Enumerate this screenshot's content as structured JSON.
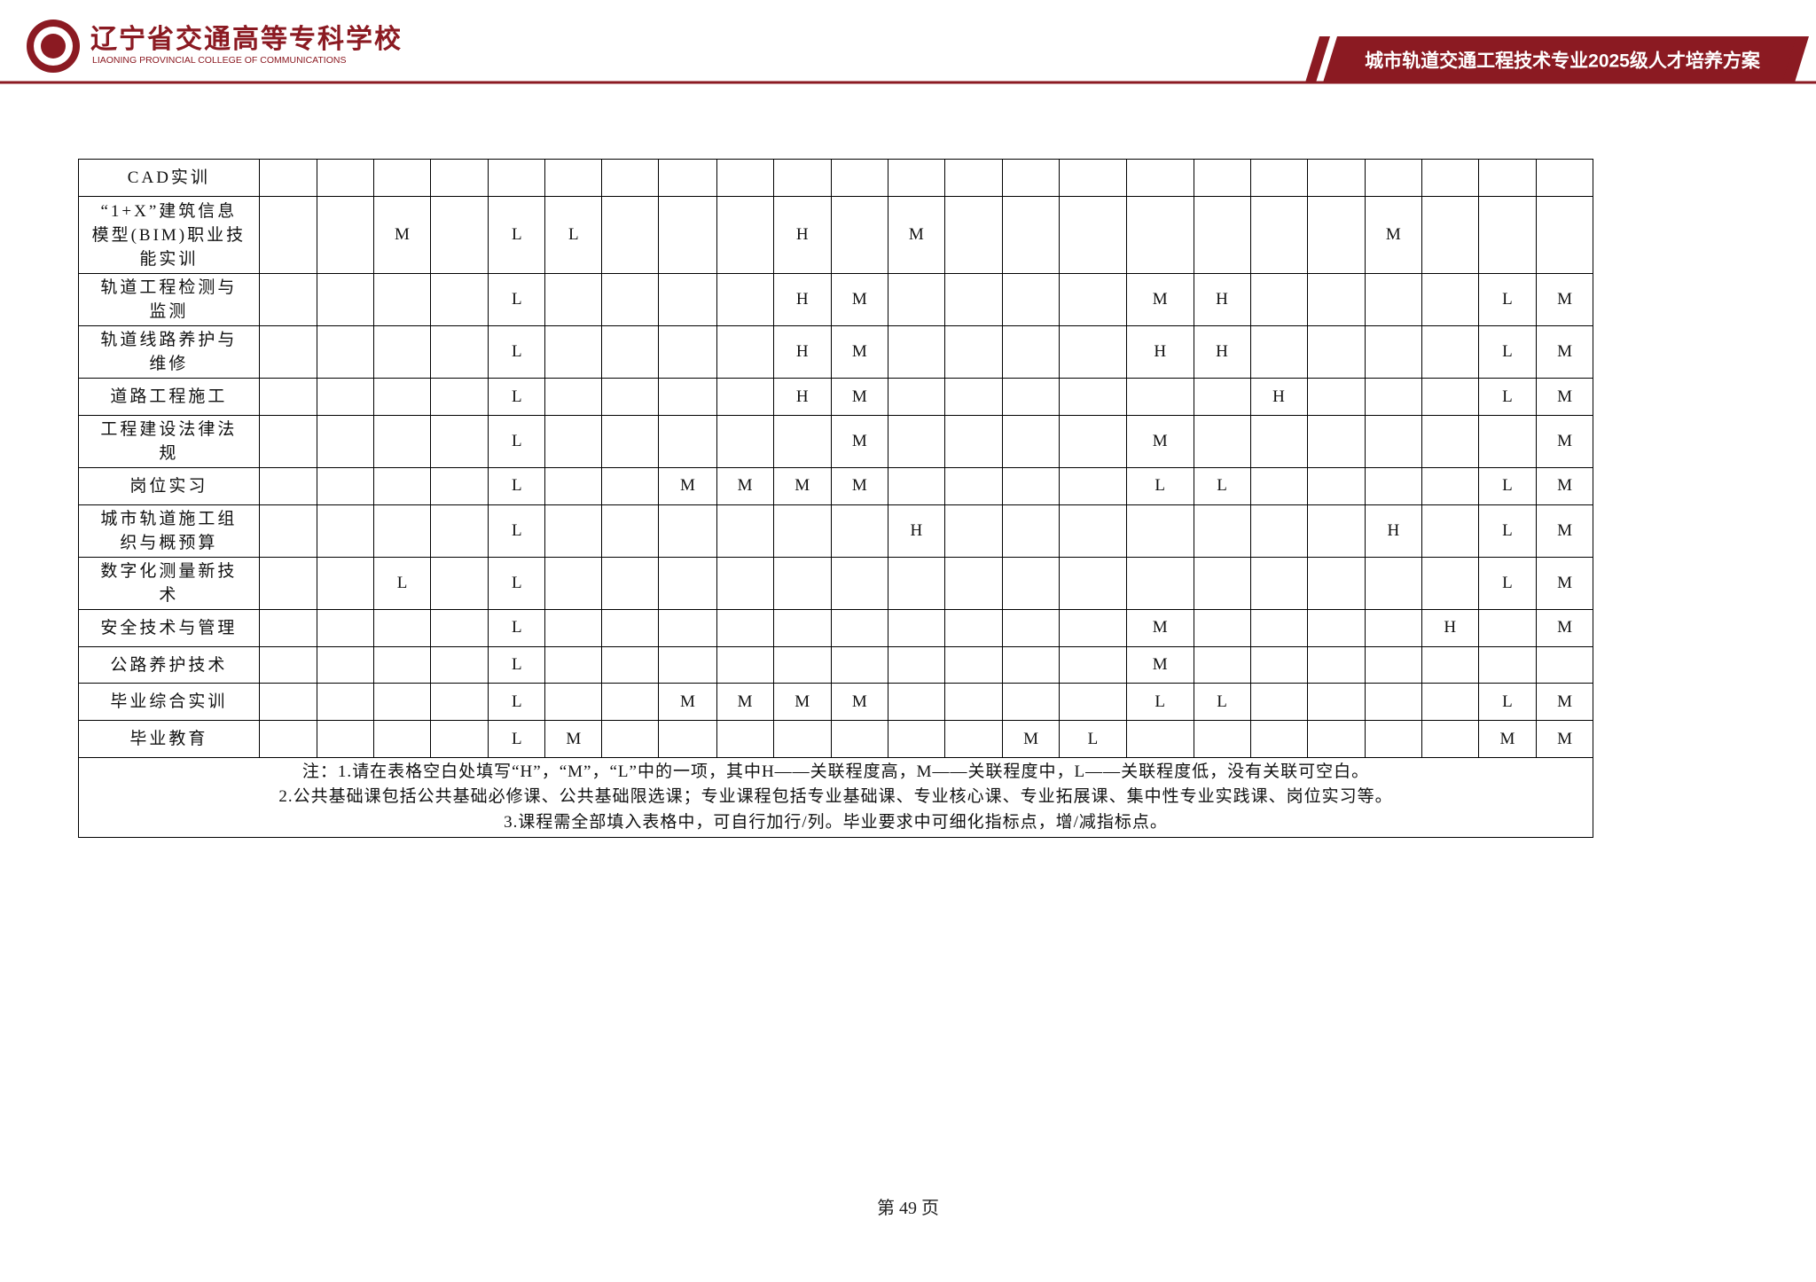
{
  "header": {
    "school_name": "辽宁省交通高等专科学校",
    "school_name_en": "LIAONING PROVINCIAL COLLEGE OF COMMUNICATIONS",
    "doc_title": "城市轨道交通工程技术专业2025级人才培养方案"
  },
  "table": {
    "rows": [
      {
        "course": "CAD实训",
        "cells": [
          null,
          null,
          null,
          null,
          null,
          null,
          null,
          null,
          null,
          null,
          null,
          null,
          null,
          null,
          null,
          null,
          null,
          null,
          null,
          null,
          null,
          null,
          null
        ]
      },
      {
        "course": "“1+X”建筑信息模型(BIM)职业技能实训",
        "cells": [
          null,
          null,
          "M",
          null,
          "L",
          "L",
          null,
          null,
          null,
          "H",
          null,
          "M",
          null,
          null,
          null,
          null,
          null,
          null,
          null,
          "M",
          null,
          null,
          null
        ]
      },
      {
        "course": "轨道工程检测与监测",
        "cells": [
          null,
          null,
          null,
          null,
          "L",
          null,
          null,
          null,
          null,
          "H",
          "M",
          null,
          null,
          null,
          null,
          "M",
          "H",
          null,
          null,
          null,
          null,
          "L",
          "M"
        ]
      },
      {
        "course": "轨道线路养护与维修",
        "cells": [
          null,
          null,
          null,
          null,
          "L",
          null,
          null,
          null,
          null,
          "H",
          "M",
          null,
          null,
          null,
          null,
          "H",
          "H",
          null,
          null,
          null,
          null,
          "L",
          "M"
        ]
      },
      {
        "course": "道路工程施工",
        "cells": [
          null,
          null,
          null,
          null,
          "L",
          null,
          null,
          null,
          null,
          "H",
          "M",
          null,
          null,
          null,
          null,
          null,
          null,
          "H",
          null,
          null,
          null,
          "L",
          "M"
        ]
      },
      {
        "course": "工程建设法律法规",
        "cells": [
          null,
          null,
          null,
          null,
          "L",
          null,
          null,
          null,
          null,
          null,
          "M",
          null,
          null,
          null,
          null,
          "M",
          null,
          null,
          null,
          null,
          null,
          null,
          "M"
        ]
      },
      {
        "course": "岗位实习",
        "cells": [
          null,
          null,
          null,
          null,
          "L",
          null,
          null,
          "M",
          "M",
          "M",
          "M",
          null,
          null,
          null,
          null,
          "L",
          "L",
          null,
          null,
          null,
          null,
          "L",
          "M"
        ]
      },
      {
        "course": "城市轨道施工组织与概预算",
        "cells": [
          null,
          null,
          null,
          null,
          "L",
          null,
          null,
          null,
          null,
          null,
          null,
          "H",
          null,
          null,
          null,
          null,
          null,
          null,
          null,
          "H",
          null,
          "L",
          "M"
        ]
      },
      {
        "course": "数字化测量新技术",
        "cells": [
          null,
          null,
          "L",
          null,
          "L",
          null,
          null,
          null,
          null,
          null,
          null,
          null,
          null,
          null,
          null,
          null,
          null,
          null,
          null,
          null,
          null,
          "L",
          "M"
        ]
      },
      {
        "course": "安全技术与管理",
        "cells": [
          null,
          null,
          null,
          null,
          "L",
          null,
          null,
          null,
          null,
          null,
          null,
          null,
          null,
          null,
          null,
          "M",
          null,
          null,
          null,
          null,
          "H",
          null,
          "M"
        ]
      },
      {
        "course": "公路养护技术",
        "cells": [
          null,
          null,
          null,
          null,
          "L",
          null,
          null,
          null,
          null,
          null,
          null,
          null,
          null,
          null,
          null,
          "M",
          null,
          null,
          null,
          null,
          null,
          null,
          null
        ]
      },
      {
        "course": "毕业综合实训",
        "cells": [
          null,
          null,
          null,
          null,
          "L",
          null,
          null,
          "M",
          "M",
          "M",
          "M",
          null,
          null,
          null,
          null,
          "L",
          "L",
          null,
          null,
          null,
          null,
          "L",
          "M"
        ]
      },
      {
        "course": "毕业教育",
        "cells": [
          null,
          null,
          null,
          null,
          "L",
          "M",
          null,
          null,
          null,
          null,
          null,
          null,
          null,
          "M",
          "L",
          null,
          null,
          null,
          null,
          null,
          null,
          "M",
          "M"
        ]
      }
    ],
    "notes": [
      "注：1.请在表格空白处填写“H”，“M”，“L”中的一项，其中H——关联程度高，M——关联程度中，L——关联程度低，没有关联可空白。",
      "2.公共基础课包括公共基础必修课、公共基础限选课；专业课程包括专业基础课、专业核心课、专业拓展课、集中性专业实践课、岗位实习等。",
      "3.课程需全部填入表格中，可自行加行/列。毕业要求中可细化指标点，增/减指标点。"
    ]
  },
  "footer": {
    "page": "第 49 页"
  }
}
